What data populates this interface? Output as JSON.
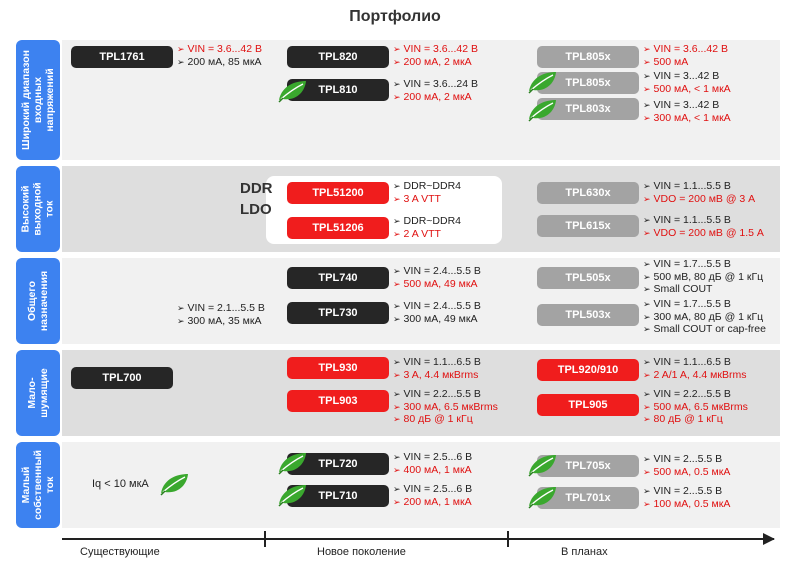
{
  "title": "Портфолио",
  "categories": [
    {
      "label": "Широкий диапазон\nвходных\nнапряжений"
    },
    {
      "label": "Высокий\nвыходной\nток"
    },
    {
      "label": "Общего\nназначения"
    },
    {
      "label": "Мало-\nшумящие"
    },
    {
      "label": "Малый\nсобственный\nток"
    }
  ],
  "ddr_label": "DDR\nLDO",
  "iq_text": "Iq < 10 мкА",
  "timeline": [
    "Существующие",
    "Новое поколение",
    "В планах"
  ],
  "products": [
    {
      "name": "TPL1761",
      "color": "black",
      "specs": [
        {
          "text": "VIN = 3.6...42 В",
          "color": "red"
        },
        {
          "text": "200 мА, 85 мкА",
          "color": "black"
        }
      ]
    },
    {
      "name": "TPL820",
      "color": "black",
      "specs": [
        {
          "text": "VIN = 3.6...42 В",
          "color": "red"
        },
        {
          "text": "200 мА, 2 мкА",
          "color": "red"
        }
      ]
    },
    {
      "name": "TPL810",
      "color": "black",
      "specs": [
        {
          "text": "VIN = 3.6...24 В",
          "color": "black"
        },
        {
          "text": "200 мА, 2 мкА",
          "color": "red"
        }
      ]
    },
    {
      "name": "TPL805x",
      "color": "gray",
      "specs": [
        {
          "text": "VIN = 3.6...42 В",
          "color": "red"
        },
        {
          "text": "500 мА",
          "color": "red"
        }
      ]
    },
    {
      "name": "TPL805x",
      "color": "gray",
      "specs": [
        {
          "text": "VIN = 3...42 В",
          "color": "black"
        },
        {
          "text": "500 мА, < 1 мкА",
          "color": "red"
        }
      ]
    },
    {
      "name": "TPL803x",
      "color": "gray",
      "specs": [
        {
          "text": "VIN = 3...42 В",
          "color": "black"
        },
        {
          "text": "300 мА, < 1 мкА",
          "color": "red"
        }
      ]
    },
    {
      "name": "TPL51200",
      "color": "red",
      "specs": [
        {
          "text": "DDR~DDR4",
          "color": "black"
        },
        {
          "text": "3 A VTT",
          "color": "red"
        }
      ]
    },
    {
      "name": "TPL51206",
      "color": "red",
      "specs": [
        {
          "text": "DDR~DDR4",
          "color": "black"
        },
        {
          "text": "2 A VTT",
          "color": "red"
        }
      ]
    },
    {
      "name": "TPL630x",
      "color": "gray",
      "specs": [
        {
          "text": "VIN = 1.1...5.5 В",
          "color": "black"
        },
        {
          "text": "VDO = 200 мВ @ 3 A",
          "color": "red"
        }
      ]
    },
    {
      "name": "TPL615x",
      "color": "gray",
      "specs": [
        {
          "text": "VIN = 1.1...5.5 В",
          "color": "black"
        },
        {
          "text": "VDO = 200 мВ @ 1.5 A",
          "color": "red"
        }
      ]
    },
    {
      "name": "TPL740",
      "color": "black",
      "specs": [
        {
          "text": "VIN = 2.4...5.5 В",
          "color": "black"
        },
        {
          "text": "500 мА, 49 мкА",
          "color": "red"
        }
      ]
    },
    {
      "name": "TPL730",
      "color": "black",
      "specs": [
        {
          "text": "VIN = 2.4...5.5 В",
          "color": "black"
        },
        {
          "text": "300 мА, 49 мкА",
          "color": "black"
        }
      ]
    },
    {
      "name": "TPL505x",
      "color": "gray",
      "specs": [
        {
          "text": "VIN = 1.7...5.5 В",
          "color": "black"
        },
        {
          "text": "500 мВ, 80 дБ @ 1 кГц",
          "color": "black"
        },
        {
          "text": "Small COUT",
          "color": "black"
        }
      ]
    },
    {
      "name": "TPL503x",
      "color": "gray",
      "specs": [
        {
          "text": "VIN = 1.7...5.5 В",
          "color": "black"
        },
        {
          "text": "300 мА, 80 дБ @ 1 кГц",
          "color": "black"
        },
        {
          "text": "Small COUT or cap-free",
          "color": "black"
        }
      ]
    },
    {
      "name": "TPL700",
      "color": "black",
      "specs": []
    },
    {
      "name": "TPL930",
      "color": "red",
      "specs": [
        {
          "text": "VIN = 1.1...6.5 В",
          "color": "black"
        },
        {
          "text": "3 A, 4.4 мкBrms",
          "color": "red"
        }
      ]
    },
    {
      "name": "TPL903",
      "color": "red",
      "specs": [
        {
          "text": "VIN = 2.2...5.5 В",
          "color": "black"
        },
        {
          "text": "300 мА, 6.5 мкBrms",
          "color": "red"
        },
        {
          "text": "80 дБ @ 1 кГц",
          "color": "red"
        }
      ]
    },
    {
      "name": "TPL920/910",
      "color": "red",
      "specs": [
        {
          "text": "VIN = 1.1...6.5 В",
          "color": "black"
        },
        {
          "text": "2 A/1 A, 4.4 мкBrms",
          "color": "red"
        }
      ]
    },
    {
      "name": "TPL905",
      "color": "red",
      "specs": [
        {
          "text": "VIN = 2.2...5.5 В",
          "color": "black"
        },
        {
          "text": "500 мА, 6.5 мкBrms",
          "color": "red"
        },
        {
          "text": "80 дБ @ 1 кГц",
          "color": "red"
        }
      ]
    },
    {
      "name": "TPL720",
      "color": "black",
      "specs": [
        {
          "text": "VIN = 2.5...6 В",
          "color": "black"
        },
        {
          "text": "400 мА, 1 мкА",
          "color": "red"
        }
      ]
    },
    {
      "name": "TPL710",
      "color": "black",
      "specs": [
        {
          "text": "VIN = 2.5...6 В",
          "color": "black"
        },
        {
          "text": "200 мА, 1 мкА",
          "color": "red"
        }
      ]
    },
    {
      "name": "TPL705x",
      "color": "gray",
      "specs": [
        {
          "text": "VIN = 2...5.5 В",
          "color": "black"
        },
        {
          "text": "500 мА, 0.5 мкА",
          "color": "red"
        }
      ]
    },
    {
      "name": "TPL701x",
      "color": "gray",
      "specs": [
        {
          "text": "VIN = 2...5.5 В",
          "color": "black"
        },
        {
          "text": "100 мА, 0.5 мкА",
          "color": "red"
        }
      ]
    }
  ],
  "standalone_specs": [
    {
      "text": "VIN = 2.1...5.5 В",
      "color": "black"
    },
    {
      "text": "300 мА, 35 мкА",
      "color": "black"
    }
  ],
  "colors": {
    "accent": "#3d82f0",
    "red": "#f01d1d",
    "black": "#262626",
    "gray": "#a3a3a3",
    "leaf": "#3aa82e"
  },
  "icons": {
    "leaf": "leaf-icon",
    "bullet": "arrow-bullet-icon"
  }
}
